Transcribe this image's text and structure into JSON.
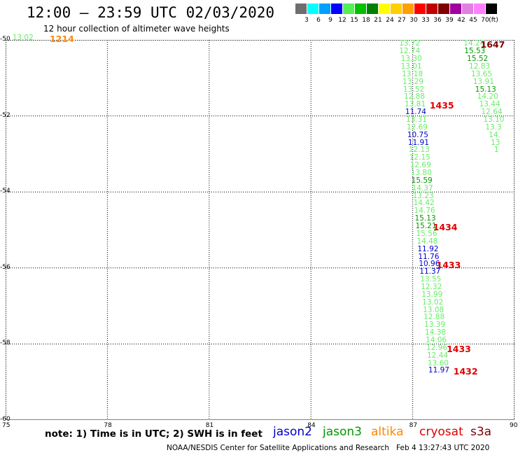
{
  "header": {
    "title": "12:00 – 23:59 UTC 02/03/2020",
    "subtitle": "12 hour collection of altimeter wave heights"
  },
  "color_scale": {
    "unit_label": "(ft)",
    "bins": [
      {
        "label": "3",
        "color": "#6e6e6e"
      },
      {
        "label": "6",
        "color": "#00ffff"
      },
      {
        "label": "9",
        "color": "#00a0ff"
      },
      {
        "label": "12",
        "color": "#0000ff"
      },
      {
        "label": "15",
        "color": "#55ee55"
      },
      {
        "label": "18",
        "color": "#00c000"
      },
      {
        "label": "21",
        "color": "#008000"
      },
      {
        "label": "24",
        "color": "#ffff00"
      },
      {
        "label": "27",
        "color": "#ffd000"
      },
      {
        "label": "30",
        "color": "#ffa000"
      },
      {
        "label": "33",
        "color": "#ff0000"
      },
      {
        "label": "36",
        "color": "#c00000"
      },
      {
        "label": "39",
        "color": "#800000"
      },
      {
        "label": "42",
        "color": "#a000a0"
      },
      {
        "label": "45",
        "color": "#e080e0"
      },
      {
        "label": "70",
        "color": "#ff80ff"
      },
      {
        "label": "",
        "color": "#000000"
      }
    ]
  },
  "map": {
    "lon_range": [
      75,
      90
    ],
    "lat_range": [
      -60,
      -50
    ],
    "lon_ticks": [
      "75",
      "78",
      "81",
      "84",
      "87",
      "90"
    ],
    "lat_ticks": [
      "-50",
      "-52",
      "-54",
      "-56",
      "-58",
      "-60"
    ],
    "grid": "dotted",
    "colors": {
      "blue": "#0000cc",
      "green_light": "#66ee66",
      "green_dark": "#009900",
      "red": "#dd0000",
      "maroon": "#800000",
      "orange": "#ff8800",
      "gray": "#555555"
    },
    "tracks": [
      {
        "name": "track-west",
        "values": [
          {
            "t": "13.72",
            "c": "green_light",
            "lon": 86.6,
            "lat": -50.1
          },
          {
            "t": "12.74",
            "c": "green_light",
            "lon": 86.6,
            "lat": -50.3
          },
          {
            "t": "13.30",
            "c": "green_light",
            "lon": 86.65,
            "lat": -50.5
          },
          {
            "t": "13.01",
            "c": "green_light",
            "lon": 86.65,
            "lat": -50.7
          },
          {
            "t": "13.18",
            "c": "green_light",
            "lon": 86.68,
            "lat": -50.9
          },
          {
            "t": "13.29",
            "c": "green_light",
            "lon": 86.7,
            "lat": -51.1
          },
          {
            "t": "13.52",
            "c": "green_light",
            "lon": 86.72,
            "lat": -51.3
          },
          {
            "t": "12.88",
            "c": "green_light",
            "lon": 86.74,
            "lat": -51.5
          },
          {
            "t": "13.81",
            "c": "green_light",
            "lon": 86.76,
            "lat": -51.7
          },
          {
            "t": "11.74",
            "c": "blue",
            "lon": 86.78,
            "lat": -51.9
          },
          {
            "t": "13.31",
            "c": "green_light",
            "lon": 86.8,
            "lat": -52.1
          },
          {
            "t": "12.69",
            "c": "green_light",
            "lon": 86.82,
            "lat": -52.3
          },
          {
            "t": "10.75",
            "c": "blue",
            "lon": 86.84,
            "lat": -52.5
          },
          {
            "t": "11.91",
            "c": "blue",
            "lon": 86.86,
            "lat": -52.7
          },
          {
            "t": "12.13",
            "c": "green_light",
            "lon": 86.88,
            "lat": -52.9
          },
          {
            "t": "12.15",
            "c": "green_light",
            "lon": 86.9,
            "lat": -53.1
          },
          {
            "t": "12.69",
            "c": "green_light",
            "lon": 86.92,
            "lat": -53.3
          },
          {
            "t": "13.80",
            "c": "green_light",
            "lon": 86.94,
            "lat": -53.5
          },
          {
            "t": "15.59",
            "c": "green_dark",
            "lon": 86.96,
            "lat": -53.7
          },
          {
            "t": "14.37",
            "c": "green_light",
            "lon": 86.98,
            "lat": -53.9
          },
          {
            "t": "13.23",
            "c": "green_light",
            "lon": 87.0,
            "lat": -54.1
          },
          {
            "t": "14.42",
            "c": "green_light",
            "lon": 87.02,
            "lat": -54.3
          },
          {
            "t": "14.76",
            "c": "green_light",
            "lon": 87.04,
            "lat": -54.5
          },
          {
            "t": "15.13",
            "c": "green_dark",
            "lon": 87.06,
            "lat": -54.7
          },
          {
            "t": "15.21",
            "c": "green_dark",
            "lon": 87.08,
            "lat": -54.9
          },
          {
            "t": "15.56",
            "c": "green_light",
            "lon": 87.1,
            "lat": -55.1
          },
          {
            "t": "14.48",
            "c": "green_light",
            "lon": 87.12,
            "lat": -55.3
          },
          {
            "t": "11.92",
            "c": "blue",
            "lon": 87.14,
            "lat": -55.5
          },
          {
            "t": "11.76",
            "c": "blue",
            "lon": 87.16,
            "lat": -55.7
          },
          {
            "t": "10.96",
            "c": "blue",
            "lon": 87.18,
            "lat": -55.9
          },
          {
            "t": "11.37",
            "c": "blue",
            "lon": 87.2,
            "lat": -56.1
          },
          {
            "t": "13.55",
            "c": "green_light",
            "lon": 87.22,
            "lat": -56.3
          },
          {
            "t": "12.32",
            "c": "green_light",
            "lon": 87.24,
            "lat": -56.5
          },
          {
            "t": "13.99",
            "c": "green_light",
            "lon": 87.26,
            "lat": -56.7
          },
          {
            "t": "13.02",
            "c": "green_light",
            "lon": 87.28,
            "lat": -56.9
          },
          {
            "t": "13.08",
            "c": "green_light",
            "lon": 87.3,
            "lat": -57.1
          },
          {
            "t": "12.88",
            "c": "green_light",
            "lon": 87.32,
            "lat": -57.3
          },
          {
            "t": "13.39",
            "c": "green_light",
            "lon": 87.34,
            "lat": -57.5
          },
          {
            "t": "14.38",
            "c": "green_light",
            "lon": 87.36,
            "lat": -57.7
          },
          {
            "t": "14.06",
            "c": "green_light",
            "lon": 87.38,
            "lat": -57.9
          },
          {
            "t": "12.96",
            "c": "green_light",
            "lon": 87.4,
            "lat": -58.1
          },
          {
            "t": "12.44",
            "c": "green_light",
            "lon": 87.42,
            "lat": -58.3
          },
          {
            "t": "13.60",
            "c": "green_light",
            "lon": 87.44,
            "lat": -58.5
          },
          {
            "t": "11.97",
            "c": "blue",
            "lon": 87.46,
            "lat": -58.7
          }
        ]
      },
      {
        "name": "track-east",
        "values": [
          {
            "t": "14.24",
            "c": "green_light",
            "lon": 88.5,
            "lat": -50.1
          },
          {
            "t": "15.53",
            "c": "green_dark",
            "lon": 88.52,
            "lat": -50.3
          },
          {
            "t": "15.52",
            "c": "green_dark",
            "lon": 88.6,
            "lat": -50.5
          },
          {
            "t": "12.83",
            "c": "green_light",
            "lon": 88.66,
            "lat": -50.7
          },
          {
            "t": "13.65",
            "c": "green_light",
            "lon": 88.72,
            "lat": -50.9
          },
          {
            "t": "13.91",
            "c": "green_light",
            "lon": 88.78,
            "lat": -51.1
          },
          {
            "t": "15.13",
            "c": "green_dark",
            "lon": 88.84,
            "lat": -51.3
          },
          {
            "t": "14.20",
            "c": "green_light",
            "lon": 88.9,
            "lat": -51.5
          },
          {
            "t": "13.44",
            "c": "green_light",
            "lon": 88.96,
            "lat": -51.7
          },
          {
            "t": "12.64",
            "c": "green_light",
            "lon": 89.02,
            "lat": -51.9
          },
          {
            "t": "13.10",
            "c": "green_light",
            "lon": 89.08,
            "lat": -52.1
          },
          {
            "t": "13.3",
            "c": "green_light",
            "lon": 89.14,
            "lat": -52.3
          },
          {
            "t": "14.",
            "c": "green_light",
            "lon": 89.24,
            "lat": -52.5
          },
          {
            "t": "13",
            "c": "green_light",
            "lon": 89.3,
            "lat": -52.7
          },
          {
            "t": "1",
            "c": "green_light",
            "lon": 89.4,
            "lat": -52.9
          }
        ]
      }
    ],
    "passes": [
      {
        "t": "1647",
        "c": "maroon",
        "lon": 89.0,
        "lat": -50.1
      },
      {
        "t": "1435",
        "c": "red",
        "lon": 87.5,
        "lat": -51.7
      },
      {
        "t": "1434",
        "c": "red",
        "lon": 87.6,
        "lat": -54.9
      },
      {
        "t": "1433",
        "c": "red",
        "lon": 87.7,
        "lat": -55.9
      },
      {
        "t": "1433",
        "c": "red",
        "lon": 88.0,
        "lat": -58.1
      },
      {
        "t": "1432",
        "c": "red",
        "lon": 88.2,
        "lat": -58.7
      },
      {
        "t": "1214",
        "c": "orange",
        "lon": 76.3,
        "lat": -49.95
      }
    ],
    "edge_value": {
      "t": "13.02",
      "c": "green_light",
      "lon": 75.2,
      "lat": -49.95
    }
  },
  "legend": {
    "note": "note: 1) Time is in UTC; 2) SWH is in feet",
    "satellites": [
      {
        "label": "jason2",
        "color": "#0000cc"
      },
      {
        "label": "jason3",
        "color": "#009900"
      },
      {
        "label": "altika",
        "color": "#ff8800"
      },
      {
        "label": "cryosat",
        "color": "#dd0000"
      },
      {
        "label": "s3a",
        "color": "#800000"
      }
    ]
  },
  "footer": {
    "credit": "NOAA/NESDIS Center for Satellite Applications and Research",
    "timestamp": "Feb  4 13:27:43 UTC 2020"
  }
}
